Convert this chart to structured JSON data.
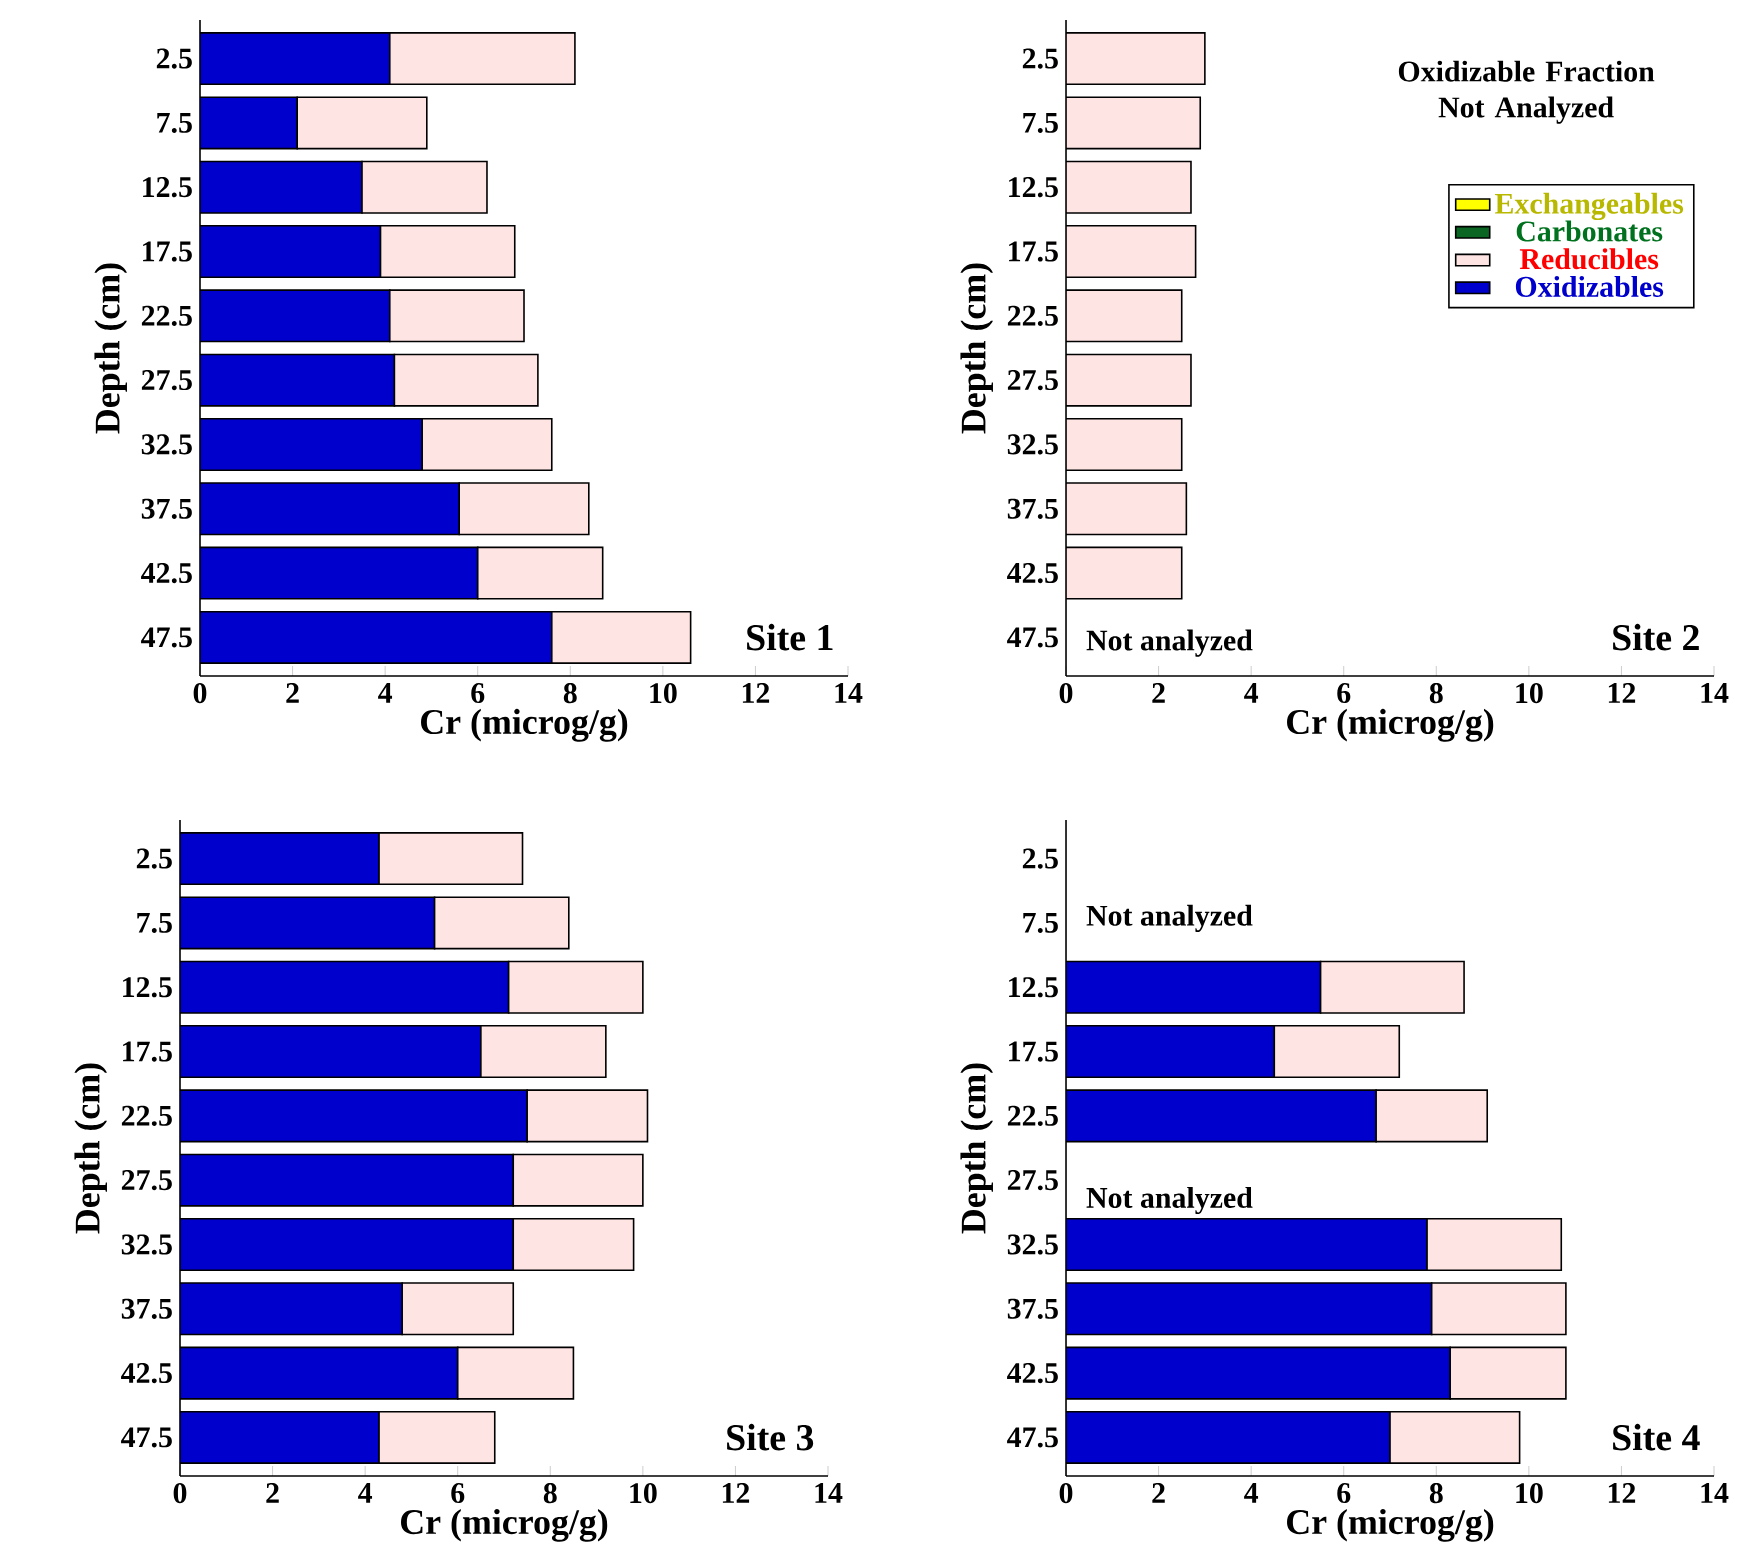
{
  "chart_data": [
    {
      "type": "bar",
      "orientation": "horizontal",
      "stacked": true,
      "title": "Site 1",
      "xlabel": "Cr (microg/g)",
      "ylabel": "Depth (cm)",
      "categories": [
        "2.5",
        "7.5",
        "12.5",
        "17.5",
        "22.5",
        "27.5",
        "32.5",
        "37.5",
        "42.5",
        "47.5"
      ],
      "series": [
        {
          "color": "#0000cc",
          "values": [
            4.1,
            2.1,
            3.5,
            3.9,
            4.1,
            4.2,
            4.8,
            5.6,
            6.0,
            7.6
          ]
        },
        {
          "color": "#ffe4e4",
          "values": [
            4.0,
            2.8,
            2.7,
            2.9,
            2.9,
            3.1,
            2.8,
            2.8,
            2.7,
            3.0
          ]
        }
      ],
      "xlim": [
        0,
        14
      ],
      "xticks": [
        0,
        2,
        4,
        6,
        8,
        10,
        12,
        14
      ]
    },
    {
      "type": "bar",
      "orientation": "horizontal",
      "stacked": true,
      "title": "Site 2",
      "xlabel": "Cr (microg/g)",
      "ylabel": "Depth (cm)",
      "categories": [
        "2.5",
        "7.5",
        "12.5",
        "17.5",
        "22.5",
        "27.5",
        "32.5",
        "37.5",
        "42.5",
        "47.5"
      ],
      "series": [
        {
          "name": "Oxidizables",
          "color": "#0000cc",
          "values": [
            null,
            null,
            null,
            null,
            null,
            null,
            null,
            null,
            null,
            null
          ]
        },
        {
          "name": "Reducibles",
          "color": "#ffe4e4",
          "values": [
            3.0,
            2.9,
            2.7,
            2.8,
            2.5,
            2.7,
            2.5,
            2.6,
            2.5,
            null
          ]
        },
        {
          "name": "Carbonates",
          "color": "#0b6623",
          "values": [
            null,
            null,
            null,
            null,
            null,
            null,
            null,
            null,
            null,
            null
          ]
        },
        {
          "name": "Exchangeables",
          "color": "#ffff00",
          "values": [
            null,
            null,
            null,
            null,
            null,
            null,
            null,
            null,
            null,
            null
          ]
        }
      ],
      "xlim": [
        0,
        14
      ],
      "xticks": [
        0,
        2,
        4,
        6,
        8,
        10,
        12,
        14
      ],
      "legend": "top right",
      "annotations": [
        "Oxidizable Fraction Not Analyzed",
        "Not analyzed"
      ]
    },
    {
      "type": "bar",
      "orientation": "horizontal",
      "stacked": true,
      "title": "Site 3",
      "xlabel": "Cr (microg/g)",
      "ylabel": "Depth (cm)",
      "categories": [
        "2.5",
        "7.5",
        "12.5",
        "17.5",
        "22.5",
        "27.5",
        "32.5",
        "37.5",
        "42.5",
        "47.5"
      ],
      "series": [
        {
          "color": "#0000cc",
          "values": [
            4.3,
            5.5,
            7.1,
            6.5,
            7.5,
            7.2,
            7.2,
            4.8,
            6.0,
            4.3
          ]
        },
        {
          "color": "#ffe4e4",
          "values": [
            3.1,
            2.9,
            2.9,
            2.7,
            2.6,
            2.8,
            2.6,
            2.4,
            2.5,
            2.5
          ]
        }
      ],
      "xlim": [
        0,
        14
      ],
      "xticks": [
        0,
        2,
        4,
        6,
        8,
        10,
        12,
        14
      ]
    },
    {
      "type": "bar",
      "orientation": "horizontal",
      "stacked": true,
      "title": "Site 4",
      "xlabel": "Cr (microg/g)",
      "ylabel": "Depth (cm)",
      "categories": [
        "2.5",
        "7.5",
        "12.5",
        "17.5",
        "22.5",
        "27.5",
        "32.5",
        "37.5",
        "42.5",
        "47.5"
      ],
      "series": [
        {
          "color": "#0000cc",
          "values": [
            null,
            null,
            5.5,
            4.5,
            6.7,
            null,
            7.8,
            7.9,
            8.3,
            7.0
          ]
        },
        {
          "color": "#ffe4e4",
          "values": [
            null,
            null,
            3.1,
            2.7,
            2.4,
            null,
            2.9,
            2.9,
            2.5,
            2.8
          ]
        }
      ],
      "xlim": [
        0,
        14
      ],
      "xticks": [
        0,
        2,
        4,
        6,
        8,
        10,
        12,
        14
      ],
      "annotations": [
        "Not analyzed",
        "Not analyzed"
      ]
    }
  ]
}
